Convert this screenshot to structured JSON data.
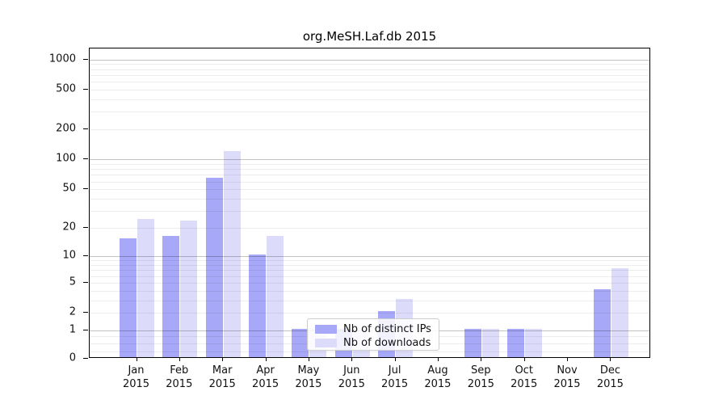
{
  "title": "org.MeSH.Laf.db 2015",
  "colors": {
    "ips_bar": "#a8a8f8",
    "downloads_bar": "#dcdcfa",
    "grid_major": "rgba(0,0,0,0.24)",
    "grid_minor": "rgba(0,0,0,0.07)",
    "axis": "#000000",
    "legend_border": "#cccccc"
  },
  "legend": {
    "items": [
      {
        "label": "Nb of distinct IPs",
        "color_key": "ips_bar"
      },
      {
        "label": "Nb of downloads",
        "color_key": "downloads_bar"
      }
    ]
  },
  "chart_data": {
    "type": "bar",
    "title": "org.MeSH.Laf.db 2015",
    "categories": [
      "Jan 2015",
      "Feb 2015",
      "Mar 2015",
      "Apr 2015",
      "May 2015",
      "Jun 2015",
      "Jul 2015",
      "Aug 2015",
      "Sep 2015",
      "Oct 2015",
      "Nov 2015",
      "Dec 2015"
    ],
    "series": [
      {
        "name": "Nb of distinct IPs",
        "values": [
          15,
          16,
          63,
          10,
          1,
          1,
          2,
          0,
          1,
          1,
          0,
          4
        ]
      },
      {
        "name": "Nb of downloads",
        "values": [
          24,
          23,
          118,
          16,
          1,
          1,
          3,
          0,
          1,
          1,
          0,
          7
        ]
      }
    ],
    "xlabel": "",
    "ylabel": "",
    "yscale": "log1p",
    "ylim": [
      0,
      1280
    ],
    "yticks": [
      0,
      1,
      2,
      5,
      10,
      20,
      50,
      100,
      200,
      500,
      1000
    ],
    "grid": true,
    "grid_major_values": [
      1,
      10,
      100,
      1000
    ],
    "grid_minor_values": [
      0.25,
      0.5,
      0.75,
      2,
      3,
      4,
      5,
      6,
      7,
      8,
      9,
      20,
      30,
      40,
      50,
      60,
      70,
      80,
      90,
      200,
      300,
      400,
      500,
      600,
      700,
      800,
      900
    ],
    "legend_position": "lower center"
  }
}
